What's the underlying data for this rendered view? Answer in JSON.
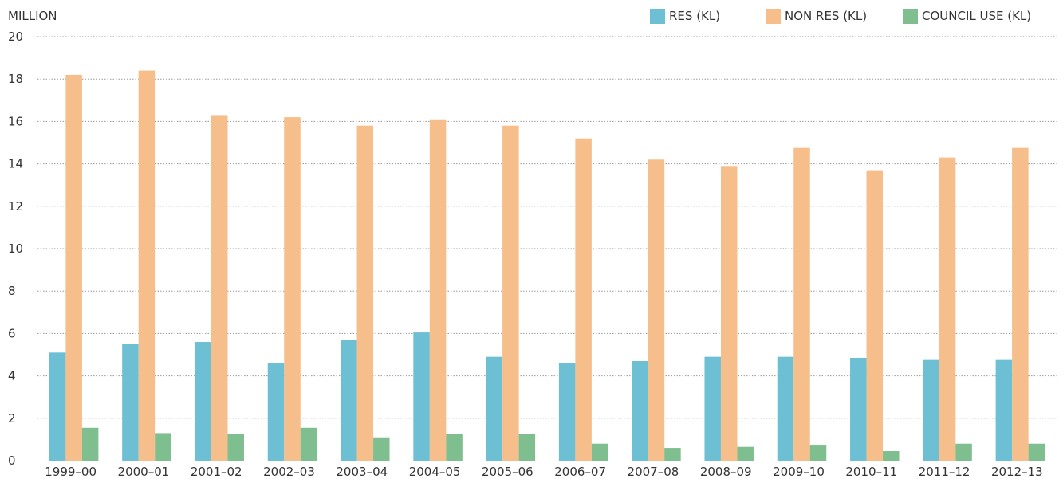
{
  "chart_data": {
    "type": "bar",
    "unit_label": "MILLION",
    "categories": [
      "1999–00",
      "2000–01",
      "2001–02",
      "2002–03",
      "2003–04",
      "2004–05",
      "2005–06",
      "2006–07",
      "2007–08",
      "2008–09",
      "2009–10",
      "2010–11",
      "2011–12",
      "2012–13"
    ],
    "series": [
      {
        "name": "RES (KL)",
        "color": "#6dbfd3",
        "values": [
          5.1,
          5.5,
          5.6,
          4.6,
          5.7,
          6.05,
          4.9,
          4.6,
          4.7,
          4.9,
          4.9,
          4.85,
          4.75,
          4.75
        ]
      },
      {
        "name": "NON RES (KL)",
        "color": "#f5be8a",
        "values": [
          18.2,
          18.4,
          16.3,
          16.2,
          15.8,
          16.1,
          15.8,
          15.2,
          14.2,
          13.9,
          14.75,
          13.7,
          14.3,
          14.75
        ]
      },
      {
        "name": "COUNCIL USE (KL)",
        "color": "#7fbf8f",
        "values": [
          1.55,
          1.3,
          1.25,
          1.55,
          1.1,
          1.25,
          1.25,
          0.8,
          0.6,
          0.65,
          0.75,
          0.45,
          0.8,
          0.8
        ]
      }
    ],
    "ylim": [
      0,
      20
    ],
    "yticks": [
      0,
      2,
      4,
      6,
      8,
      10,
      12,
      14,
      16,
      18,
      20
    ],
    "grid": true,
    "legend_position": "top-right"
  }
}
